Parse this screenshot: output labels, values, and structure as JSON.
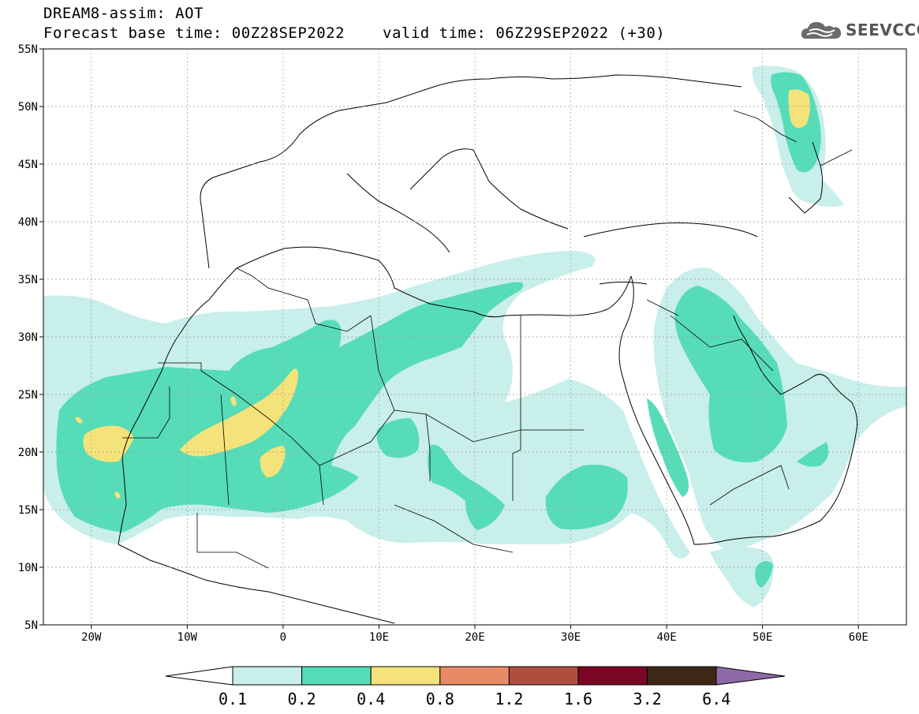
{
  "header": {
    "model_title": "DREAM8-assim: AOT",
    "base_time": "Forecast base time: 00Z28SEP2022",
    "valid_time": "valid time: 06Z29SEP2022 (+30)"
  },
  "logo": {
    "text": "SEEVCCC",
    "icon": "cloud-logo-icon"
  },
  "map": {
    "lon_range": [
      -25,
      65
    ],
    "lat_range": [
      5,
      55
    ],
    "lat_labels": [
      "55N",
      "50N",
      "45N",
      "40N",
      "35N",
      "30N",
      "25N",
      "20N",
      "15N",
      "10N",
      "5N"
    ],
    "lon_labels": [
      "20W",
      "10W",
      "0",
      "10E",
      "20E",
      "30E",
      "40E",
      "50E",
      "60E"
    ]
  },
  "colorbar": {
    "labels": [
      "0.1",
      "0.2",
      "0.4",
      "0.8",
      "1.2",
      "1.6",
      "3.2",
      "6.4"
    ],
    "colors": [
      "#ffffff",
      "#c8efea",
      "#57dcb8",
      "#f4e37a",
      "#e98a66",
      "#ad4e3f",
      "#7a0524",
      "#3d2817",
      "#8e6aa8"
    ]
  }
}
